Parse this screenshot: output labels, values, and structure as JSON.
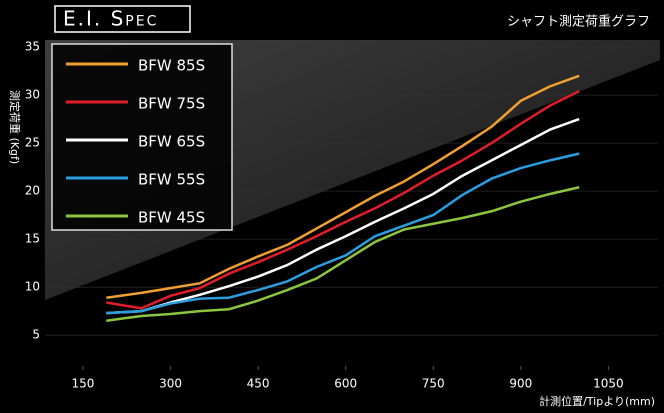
{
  "chart_data": {
    "type": "line",
    "title": "E.I. Spec",
    "subtitle": "シャフト測定荷重グラフ",
    "y_label": "測定荷重 (Kgf)",
    "x_label": "計測位置/Tipより(mm)",
    "x": [
      190,
      250,
      300,
      350,
      400,
      450,
      500,
      550,
      600,
      650,
      700,
      750,
      800,
      850,
      900,
      950,
      1000
    ],
    "series": [
      {
        "name": "BFW 85S",
        "color": "#f0a030",
        "values": [
          8.9,
          9.4,
          9.9,
          10.4,
          11.9,
          13.2,
          14.4,
          16.1,
          17.8,
          19.5,
          21.0,
          22.8,
          24.7,
          26.7,
          29.4,
          30.9,
          32.0
        ]
      },
      {
        "name": "BFW 75S",
        "color": "#e01e2a",
        "values": [
          8.4,
          7.8,
          9.1,
          9.9,
          11.4,
          12.6,
          13.9,
          15.3,
          16.8,
          18.2,
          19.8,
          21.6,
          23.2,
          25.0,
          27.0,
          28.9,
          30.4
        ]
      },
      {
        "name": "BFW 65S",
        "color": "#ffffff",
        "values": [
          7.3,
          7.5,
          8.4,
          9.2,
          10.1,
          11.1,
          12.3,
          13.9,
          15.3,
          16.8,
          18.2,
          19.7,
          21.6,
          23.2,
          24.8,
          26.4,
          27.5
        ]
      },
      {
        "name": "BFW 55S",
        "color": "#2a9ee0",
        "values": [
          7.3,
          7.5,
          8.3,
          8.8,
          8.9,
          9.7,
          10.6,
          12.1,
          13.3,
          15.3,
          16.4,
          17.5,
          19.6,
          21.3,
          22.4,
          23.2,
          23.9
        ]
      },
      {
        "name": "BFW 45S",
        "color": "#8cc63f",
        "values": [
          6.5,
          7.0,
          7.2,
          7.5,
          7.7,
          8.6,
          9.7,
          10.9,
          12.8,
          14.7,
          16.0,
          16.6,
          17.2,
          17.9,
          18.9,
          19.7,
          20.4
        ]
      }
    ],
    "xlim": [
      85,
      1135
    ],
    "xticks": [
      150,
      300,
      450,
      600,
      750,
      900,
      1050
    ],
    "ylim": [
      2,
      35
    ],
    "yticks": [
      5,
      10,
      15,
      20,
      25,
      30,
      35
    ],
    "grid": true
  }
}
